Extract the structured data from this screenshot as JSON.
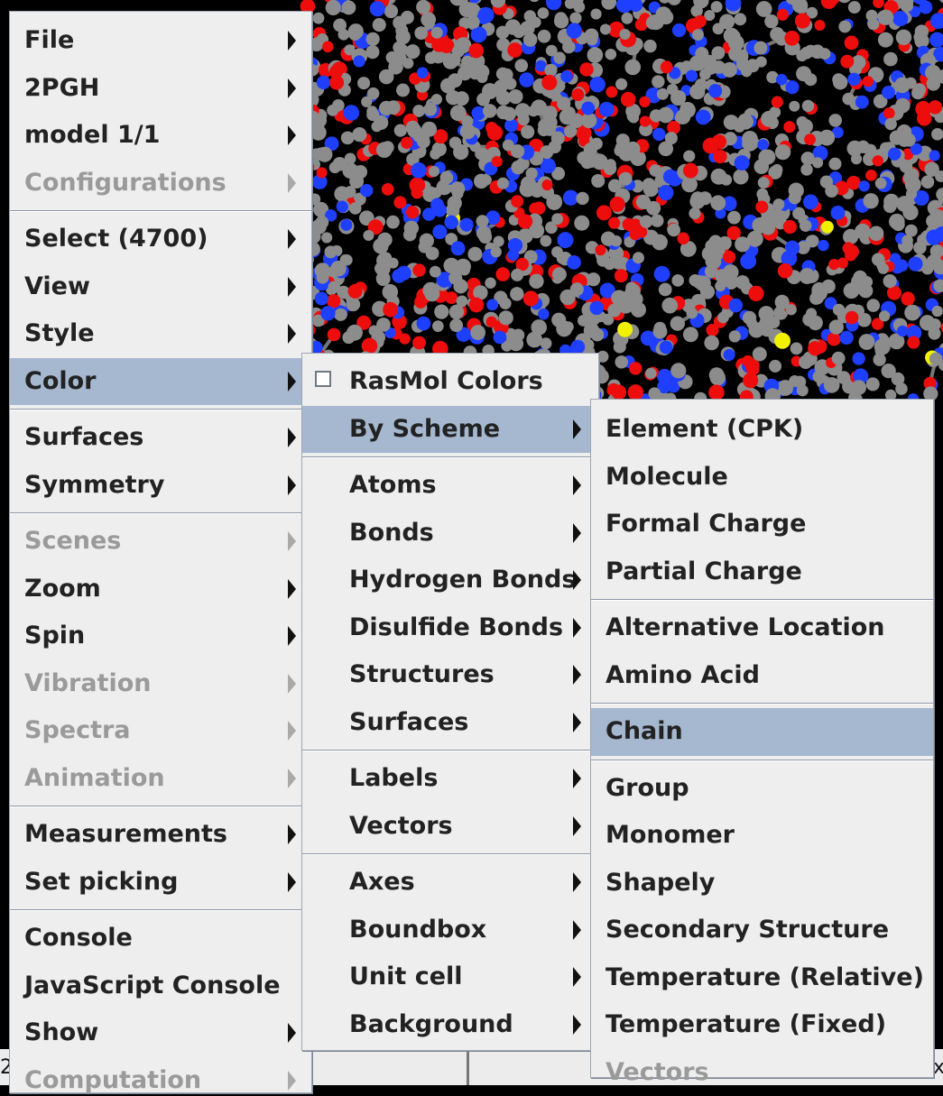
{
  "main_menu": {
    "groups": [
      [
        {
          "label": "File",
          "enabled": true,
          "submenu": true
        },
        {
          "label": "2PGH",
          "enabled": true,
          "submenu": true
        },
        {
          "label": "model 1/1",
          "enabled": true,
          "submenu": true
        },
        {
          "label": "Configurations",
          "enabled": false,
          "submenu": true
        }
      ],
      [
        {
          "label": "Select (4700)",
          "enabled": true,
          "submenu": true
        },
        {
          "label": "View",
          "enabled": true,
          "submenu": true
        },
        {
          "label": "Style",
          "enabled": true,
          "submenu": true
        },
        {
          "label": "Color",
          "enabled": true,
          "submenu": true,
          "highlighted": true
        }
      ],
      [
        {
          "label": "Surfaces",
          "enabled": true,
          "submenu": true
        },
        {
          "label": "Symmetry",
          "enabled": true,
          "submenu": true
        }
      ],
      [
        {
          "label": "Scenes",
          "enabled": false,
          "submenu": true
        },
        {
          "label": "Zoom",
          "enabled": true,
          "submenu": true
        },
        {
          "label": "Spin",
          "enabled": true,
          "submenu": true
        },
        {
          "label": "Vibration",
          "enabled": false,
          "submenu": true
        },
        {
          "label": "Spectra",
          "enabled": false,
          "submenu": true
        },
        {
          "label": "Animation",
          "enabled": false,
          "submenu": true
        }
      ],
      [
        {
          "label": "Measurements",
          "enabled": true,
          "submenu": true
        },
        {
          "label": "Set picking",
          "enabled": true,
          "submenu": true
        }
      ],
      [
        {
          "label": "Console",
          "enabled": true,
          "submenu": false
        },
        {
          "label": "JavaScript Console",
          "enabled": true,
          "submenu": false
        },
        {
          "label": "Show",
          "enabled": true,
          "submenu": true
        },
        {
          "label": "Computation",
          "enabled": false,
          "submenu": true
        }
      ]
    ]
  },
  "color_menu": {
    "groups": [
      [
        {
          "label": "RasMol Colors",
          "enabled": true,
          "submenu": false,
          "checkbox": true,
          "checked": false
        },
        {
          "label": "By Scheme",
          "enabled": true,
          "submenu": true,
          "highlighted": true
        }
      ],
      [
        {
          "label": "Atoms",
          "enabled": true,
          "submenu": true
        },
        {
          "label": "Bonds",
          "enabled": true,
          "submenu": true
        },
        {
          "label": "Hydrogen Bonds",
          "enabled": true,
          "submenu": true
        },
        {
          "label": "Disulfide Bonds",
          "enabled": true,
          "submenu": true
        },
        {
          "label": "Structures",
          "enabled": true,
          "submenu": true
        },
        {
          "label": "Surfaces",
          "enabled": true,
          "submenu": true
        }
      ],
      [
        {
          "label": "Labels",
          "enabled": true,
          "submenu": true
        },
        {
          "label": "Vectors",
          "enabled": true,
          "submenu": true
        }
      ],
      [
        {
          "label": "Axes",
          "enabled": true,
          "submenu": true
        },
        {
          "label": "Boundbox",
          "enabled": true,
          "submenu": true
        },
        {
          "label": "Unit cell",
          "enabled": true,
          "submenu": true
        },
        {
          "label": "Background",
          "enabled": true,
          "submenu": true
        }
      ]
    ]
  },
  "scheme_menu": {
    "groups": [
      [
        {
          "label": "Element (CPK)",
          "enabled": true
        },
        {
          "label": "Molecule",
          "enabled": true
        },
        {
          "label": "Formal Charge",
          "enabled": true
        },
        {
          "label": "Partial Charge",
          "enabled": true
        }
      ],
      [
        {
          "label": "Alternative Location",
          "enabled": true
        },
        {
          "label": "Amino Acid",
          "enabled": true
        }
      ],
      [
        {
          "label": "Chain",
          "enabled": true,
          "highlighted": true
        }
      ],
      [
        {
          "label": "Group",
          "enabled": true
        },
        {
          "label": "Monomer",
          "enabled": true
        },
        {
          "label": "Shapely",
          "enabled": true
        },
        {
          "label": "Secondary Structure",
          "enabled": true
        },
        {
          "label": "Temperature (Relative)",
          "enabled": true
        },
        {
          "label": "Temperature (Fixed)",
          "enabled": true
        },
        {
          "label": "Vectors",
          "enabled": false
        }
      ]
    ]
  },
  "status_bar": {
    "left_text": "2",
    "right_text": "x"
  },
  "colors": {
    "background": "#000000",
    "atom_carbon": "#8c8c8c",
    "atom_oxygen": "#ee0d0d",
    "atom_nitrogen": "#1f3fff",
    "atom_sulfur": "#f2f200",
    "highlight": "#a5b8cf"
  }
}
